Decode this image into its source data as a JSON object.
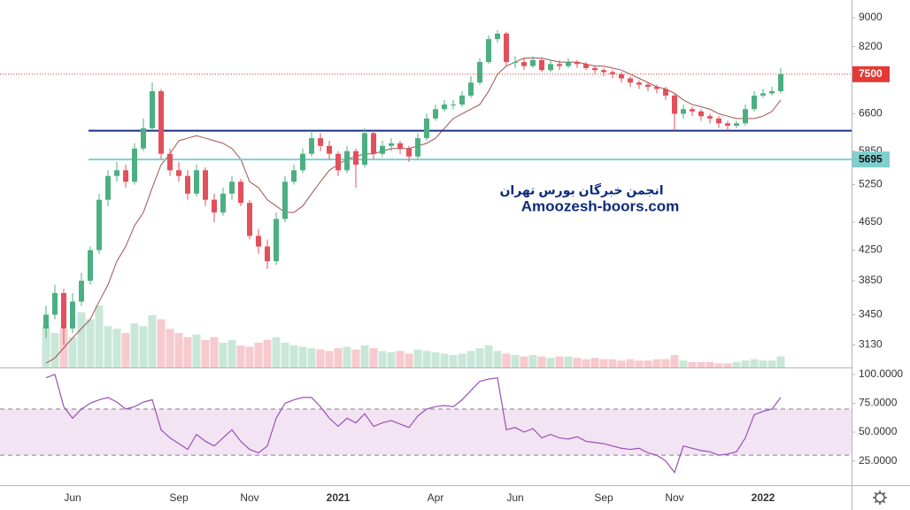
{
  "chart_data": [
    {
      "type": "candlestick",
      "categories": [
        null,
        null,
        null,
        "Jun",
        null,
        null,
        null,
        null,
        null,
        null,
        null,
        null,
        null,
        null,
        null,
        "Sep",
        null,
        null,
        null,
        null,
        null,
        null,
        null,
        "Nov",
        null,
        null,
        null,
        null,
        null,
        null,
        null,
        null,
        null,
        "2021",
        null,
        null,
        null,
        null,
        null,
        null,
        null,
        null,
        null,
        null,
        "Apr",
        null,
        null,
        null,
        null,
        null,
        null,
        null,
        null,
        "Jun",
        null,
        null,
        null,
        null,
        null,
        null,
        null,
        null,
        null,
        "Sep",
        null,
        null,
        null,
        null,
        null,
        null,
        null,
        "Nov",
        null,
        null,
        null,
        null,
        null,
        null,
        null,
        null,
        null,
        "2022",
        null,
        null
      ],
      "open": [
        3300,
        3450,
        3700,
        3300,
        3600,
        3850,
        4250,
        5000,
        5400,
        5500,
        5300,
        5900,
        6300,
        7100,
        5800,
        5500,
        5400,
        5100,
        5500,
        5000,
        4800,
        5100,
        5300,
        4950,
        4450,
        4300,
        4100,
        4700,
        5300,
        5500,
        5800,
        6100,
        5950,
        5800,
        5500,
        5850,
        5600,
        6200,
        5800,
        5950,
        6000,
        5900,
        5750,
        6100,
        6500,
        6700,
        6800,
        6800,
        7000,
        7300,
        7800,
        8400,
        8550,
        7800,
        7800,
        7700,
        7850,
        7600,
        7750,
        7700,
        7800,
        7750,
        7650,
        7600,
        7550,
        7500,
        7400,
        7300,
        7250,
        7200,
        7150,
        7000,
        6600,
        6700,
        6650,
        6550,
        6500,
        6400,
        6350,
        6400,
        6700,
        7000,
        7050,
        7100
      ],
      "high": [
        3550,
        3800,
        3750,
        3700,
        3950,
        4300,
        5100,
        5500,
        5650,
        5600,
        6000,
        6500,
        7300,
        7150,
        5900,
        5650,
        5500,
        5600,
        5550,
        5100,
        5200,
        5400,
        5350,
        5000,
        4550,
        4400,
        4800,
        5400,
        5600,
        5900,
        6250,
        6200,
        6050,
        5850,
        5950,
        5900,
        6300,
        6250,
        6050,
        6100,
        6050,
        5950,
        6200,
        6600,
        6800,
        6900,
        6900,
        7100,
        7450,
        7900,
        8500,
        8650,
        8600,
        7950,
        7900,
        7950,
        7900,
        7850,
        7850,
        7900,
        7850,
        7800,
        7700,
        7650,
        7600,
        7550,
        7450,
        7350,
        7300,
        7250,
        7200,
        7050,
        6800,
        6750,
        6700,
        6600,
        6550,
        6450,
        6450,
        6800,
        7100,
        7150,
        7200,
        7650
      ],
      "low": [
        3200,
        3400,
        3130,
        3250,
        3550,
        3800,
        4200,
        4900,
        5300,
        5200,
        5250,
        5850,
        6250,
        5700,
        5400,
        5300,
        5000,
        5050,
        4900,
        4650,
        4750,
        5000,
        4900,
        4400,
        4200,
        4000,
        4050,
        4650,
        5250,
        5450,
        5750,
        5850,
        5700,
        5400,
        5450,
        5200,
        5550,
        5700,
        5750,
        5850,
        5800,
        5650,
        5700,
        6050,
        6450,
        6650,
        6700,
        6750,
        6950,
        7250,
        7750,
        8300,
        7700,
        7650,
        7600,
        7650,
        7550,
        7550,
        7600,
        7650,
        7650,
        7600,
        7500,
        7450,
        7400,
        7300,
        7200,
        7150,
        7100,
        7050,
        6900,
        6250,
        6500,
        6550,
        6450,
        6400,
        6300,
        6250,
        6300,
        6350,
        6650,
        6950,
        7000,
        7050
      ],
      "close": [
        3450,
        3700,
        3300,
        3600,
        3850,
        4250,
        5000,
        5400,
        5500,
        5300,
        5900,
        6300,
        7100,
        5800,
        5500,
        5400,
        5100,
        5500,
        5000,
        4800,
        5100,
        5300,
        4950,
        4450,
        4300,
        4100,
        4700,
        5300,
        5500,
        5800,
        6100,
        5950,
        5800,
        5500,
        5850,
        5600,
        6200,
        5800,
        5950,
        6000,
        5900,
        5750,
        6100,
        6500,
        6700,
        6800,
        6800,
        7000,
        7300,
        7800,
        8400,
        8550,
        7800,
        7800,
        7700,
        7850,
        7600,
        7750,
        7700,
        7800,
        7750,
        7650,
        7600,
        7550,
        7500,
        7400,
        7300,
        7250,
        7200,
        7150,
        7000,
        6600,
        6700,
        6650,
        6550,
        6500,
        6400,
        6350,
        6400,
        6700,
        7000,
        7050,
        7100,
        7500
      ],
      "volume": [
        30,
        25,
        28,
        22,
        40,
        35,
        45,
        30,
        28,
        25,
        32,
        30,
        38,
        35,
        28,
        25,
        22,
        24,
        20,
        22,
        18,
        20,
        16,
        15,
        18,
        20,
        22,
        18,
        16,
        15,
        14,
        13,
        12,
        14,
        15,
        13,
        16,
        14,
        12,
        11,
        12,
        10,
        13,
        12,
        11,
        10,
        9,
        10,
        12,
        14,
        16,
        12,
        10,
        9,
        8,
        9,
        8,
        7,
        8,
        8,
        7,
        6,
        7,
        6,
        6,
        5,
        6,
        5,
        5,
        6,
        6,
        9,
        5,
        4,
        4,
        4,
        3,
        3,
        4,
        5,
        6,
        5,
        5,
        8
      ],
      "up_color": "#4caf82",
      "down_color": "#e2505c",
      "baseline": {
        "color": "#a0524f",
        "values": [
          2950,
          3000,
          3100,
          3200,
          3300,
          3400,
          3600,
          3800,
          4100,
          4300,
          4600,
          4800,
          5200,
          5600,
          5800,
          6050,
          6100,
          6150,
          6100,
          6050,
          6000,
          5900,
          5700,
          5300,
          5200,
          5000,
          4900,
          4800,
          4800,
          4900,
          5100,
          5300,
          5500,
          5600,
          5700,
          5750,
          5800,
          5800,
          5850,
          5900,
          5900,
          5900,
          5950,
          6000,
          6100,
          6300,
          6500,
          6600,
          6700,
          6800,
          7100,
          7500,
          7700,
          7800,
          7900,
          7900,
          7900,
          7850,
          7800,
          7800,
          7800,
          7750,
          7700,
          7700,
          7650,
          7600,
          7500,
          7400,
          7300,
          7200,
          7150,
          7050,
          6900,
          6800,
          6750,
          6700,
          6600,
          6550,
          6500,
          6500,
          6500,
          6550,
          6650,
          6900
        ]
      },
      "ylim": [
        2910,
        9530
      ],
      "log_scale": true,
      "yticks": [
        3130,
        3450,
        3850,
        4250,
        4650,
        5250,
        5850,
        6600,
        8200,
        9000
      ],
      "hlines": [
        {
          "value": 6250,
          "color": "#1a2f8a",
          "show_label": false
        },
        {
          "value": 5695,
          "color": "#7fcfcf",
          "show_label": true
        }
      ],
      "last_price_color": "#e53935",
      "annotations": [
        "انجمن خبرگان بورس تهران",
        "Amoozesh-boors.com"
      ]
    },
    {
      "type": "line",
      "values": [
        97,
        100,
        72,
        62,
        70,
        75,
        78,
        80,
        76,
        70,
        72,
        76,
        78,
        52,
        45,
        40,
        35,
        48,
        42,
        38,
        45,
        52,
        42,
        35,
        32,
        38,
        62,
        75,
        78,
        80,
        80,
        72,
        62,
        55,
        62,
        58,
        66,
        55,
        58,
        60,
        57,
        54,
        64,
        70,
        72,
        73,
        72,
        78,
        86,
        94,
        96,
        97,
        52,
        54,
        50,
        53,
        45,
        48,
        45,
        44,
        46,
        42,
        41,
        40,
        38,
        36,
        35,
        36,
        32,
        30,
        25,
        15,
        38,
        36,
        34,
        33,
        30,
        31,
        33,
        45,
        65,
        68,
        70,
        80
      ],
      "color": "#9b4fb5",
      "ylim": [
        4,
        106
      ],
      "yticks": [
        {
          "value": 25,
          "label": "25.0000"
        },
        {
          "value": 50,
          "label": "50.0000"
        },
        {
          "value": 75,
          "label": "75.0000"
        },
        {
          "value": 100,
          "label": "100.0000"
        }
      ],
      "band": [
        30,
        70
      ],
      "band_color": "#f3e4f4"
    }
  ]
}
